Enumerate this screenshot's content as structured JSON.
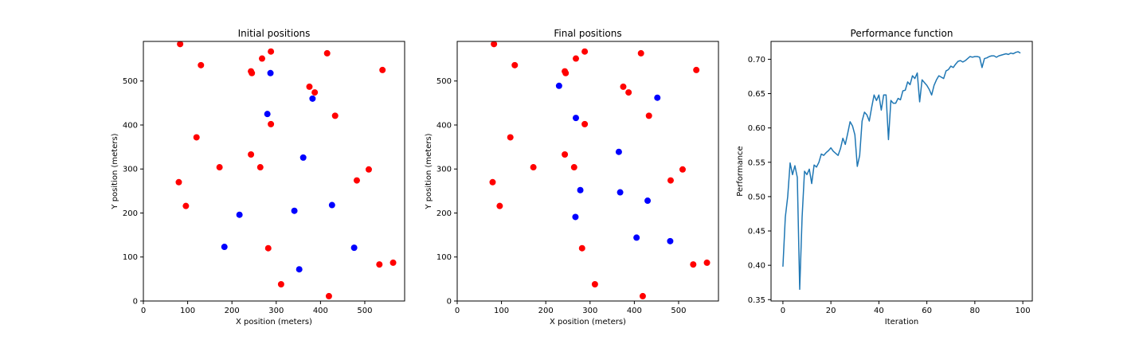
{
  "colors": {
    "sensor": "#ff0000",
    "mobile": "#0000ff",
    "line": "#1f77b4"
  },
  "chart_data": [
    {
      "type": "scatter",
      "title": "Initial positions",
      "xlabel": "X position (meters)",
      "ylabel": "Y position (meters)",
      "xlim": [
        0,
        590
      ],
      "ylim": [
        0,
        590
      ],
      "xticks": [
        0,
        100,
        200,
        300,
        400,
        500
      ],
      "yticks": [
        0,
        100,
        200,
        300,
        400,
        500
      ],
      "series": [
        {
          "name": "red",
          "points": [
            [
              83,
              584
            ],
            [
              130,
              536
            ],
            [
              268,
              551
            ],
            [
              288,
              567
            ],
            [
              415,
              563
            ],
            [
              243,
              522
            ],
            [
              245,
              518
            ],
            [
              375,
              487
            ],
            [
              387,
              474
            ],
            [
              540,
              525
            ],
            [
              433,
              421
            ],
            [
              288,
              402
            ],
            [
              120,
              372
            ],
            [
              243,
              333
            ],
            [
              172,
              304
            ],
            [
              264,
              304
            ],
            [
              80,
              270
            ],
            [
              509,
              299
            ],
            [
              482,
              274
            ],
            [
              96,
              216
            ],
            [
              282,
              120
            ],
            [
              533,
              83
            ],
            [
              564,
              87
            ],
            [
              311,
              38
            ],
            [
              419,
              11
            ]
          ]
        },
        {
          "name": "blue",
          "points": [
            [
              287,
              518
            ],
            [
              382,
              460
            ],
            [
              280,
              425
            ],
            [
              361,
              326
            ],
            [
              426,
              218
            ],
            [
              217,
              196
            ],
            [
              341,
              205
            ],
            [
              183,
              123
            ],
            [
              476,
              121
            ],
            [
              352,
              72
            ]
          ]
        }
      ]
    },
    {
      "type": "scatter",
      "title": "Final positions",
      "xlabel": "X position (meters)",
      "ylabel": "Y position (meters)",
      "xlim": [
        0,
        590
      ],
      "ylim": [
        0,
        590
      ],
      "xticks": [
        0,
        100,
        200,
        300,
        400,
        500
      ],
      "yticks": [
        0,
        100,
        200,
        300,
        400,
        500
      ],
      "series": [
        {
          "name": "red",
          "points": [
            [
              83,
              584
            ],
            [
              130,
              536
            ],
            [
              268,
              551
            ],
            [
              288,
              567
            ],
            [
              415,
              563
            ],
            [
              243,
              522
            ],
            [
              245,
              518
            ],
            [
              375,
              487
            ],
            [
              387,
              474
            ],
            [
              540,
              525
            ],
            [
              433,
              421
            ],
            [
              288,
              402
            ],
            [
              120,
              372
            ],
            [
              243,
              333
            ],
            [
              172,
              304
            ],
            [
              264,
              304
            ],
            [
              80,
              270
            ],
            [
              509,
              299
            ],
            [
              482,
              274
            ],
            [
              96,
              216
            ],
            [
              282,
              120
            ],
            [
              533,
              83
            ],
            [
              564,
              87
            ],
            [
              311,
              38
            ],
            [
              419,
              11
            ]
          ]
        },
        {
          "name": "blue",
          "points": [
            [
              230,
              489
            ],
            [
              268,
              416
            ],
            [
              452,
              462
            ],
            [
              365,
              339
            ],
            [
              278,
              252
            ],
            [
              368,
              247
            ],
            [
              430,
              228
            ],
            [
              267,
              191
            ],
            [
              405,
              144
            ],
            [
              481,
              136
            ]
          ]
        }
      ]
    },
    {
      "type": "line",
      "title": "Performance function",
      "xlabel": "Iteration",
      "ylabel": "Performance",
      "xlim": [
        -4.95,
        103.95
      ],
      "ylim": [
        0.348,
        0.726
      ],
      "xticks": [
        0,
        20,
        40,
        60,
        80,
        100
      ],
      "yticks": [
        0.35,
        0.4,
        0.45,
        0.5,
        0.55,
        0.6,
        0.65,
        0.7
      ],
      "ytick_labels": [
        "0.35",
        "0.40",
        "0.45",
        "0.50",
        "0.55",
        "0.60",
        "0.65",
        "0.70"
      ],
      "series": [
        {
          "name": "performance",
          "x": [
            0,
            1,
            2,
            3,
            4,
            5,
            6,
            7,
            8,
            9,
            10,
            11,
            12,
            13,
            14,
            15,
            16,
            17,
            18,
            19,
            20,
            21,
            22,
            23,
            24,
            25,
            26,
            27,
            28,
            29,
            30,
            31,
            32,
            33,
            34,
            35,
            36,
            37,
            38,
            39,
            40,
            41,
            42,
            43,
            44,
            45,
            46,
            47,
            48,
            49,
            50,
            51,
            52,
            53,
            54,
            55,
            56,
            57,
            58,
            59,
            60,
            61,
            62,
            63,
            64,
            65,
            66,
            67,
            68,
            69,
            70,
            71,
            72,
            73,
            74,
            75,
            76,
            77,
            78,
            79,
            80,
            81,
            82,
            83,
            84,
            85,
            86,
            87,
            88,
            89,
            90,
            91,
            92,
            93,
            94,
            95,
            96,
            97,
            98,
            99
          ],
          "values": [
            0.398,
            0.47,
            0.5,
            0.549,
            0.532,
            0.545,
            0.528,
            0.365,
            0.47,
            0.537,
            0.532,
            0.54,
            0.519,
            0.546,
            0.543,
            0.55,
            0.562,
            0.56,
            0.564,
            0.567,
            0.571,
            0.566,
            0.563,
            0.56,
            0.57,
            0.585,
            0.576,
            0.592,
            0.609,
            0.603,
            0.59,
            0.544,
            0.56,
            0.61,
            0.623,
            0.619,
            0.61,
            0.63,
            0.648,
            0.64,
            0.648,
            0.626,
            0.648,
            0.648,
            0.583,
            0.64,
            0.636,
            0.636,
            0.643,
            0.641,
            0.654,
            0.655,
            0.667,
            0.663,
            0.676,
            0.672,
            0.68,
            0.638,
            0.67,
            0.666,
            0.662,
            0.656,
            0.648,
            0.662,
            0.67,
            0.676,
            0.674,
            0.672,
            0.683,
            0.685,
            0.69,
            0.688,
            0.693,
            0.697,
            0.698,
            0.696,
            0.698,
            0.701,
            0.704,
            0.703,
            0.704,
            0.704,
            0.703,
            0.688,
            0.701,
            0.702,
            0.704,
            0.705,
            0.705,
            0.703,
            0.705,
            0.706,
            0.707,
            0.708,
            0.707,
            0.709,
            0.708,
            0.71,
            0.711,
            0.709
          ]
        }
      ]
    }
  ]
}
